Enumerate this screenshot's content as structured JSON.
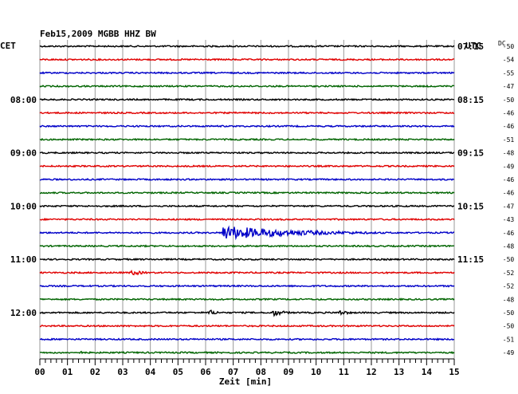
{
  "chart_data": {
    "type": "line",
    "title": "Feb15,2009   MGBB HHZ BW",
    "left_axis_label": "CET",
    "right_axis_label": "UTC",
    "dc_label": "DC",
    "xlabel": "Zeit [min]",
    "xlim": [
      0,
      15
    ],
    "x_ticks": [
      "00",
      "01",
      "02",
      "03",
      "04",
      "05",
      "06",
      "07",
      "08",
      "09",
      "10",
      "11",
      "12",
      "13",
      "14",
      "15"
    ],
    "left_time_labels": [
      {
        "row": 4,
        "label": "08:00"
      },
      {
        "row": 8,
        "label": "09:00"
      },
      {
        "row": 12,
        "label": "10:00"
      },
      {
        "row": 16,
        "label": "11:00"
      },
      {
        "row": 20,
        "label": "12:00"
      }
    ],
    "right_time_labels": [
      {
        "row": 0,
        "label": "07:15"
      },
      {
        "row": 4,
        "label": "08:15"
      },
      {
        "row": 8,
        "label": "09:15"
      },
      {
        "row": 12,
        "label": "10:15"
      },
      {
        "row": 16,
        "label": "11:15"
      }
    ],
    "dc_values": [
      "-50",
      "-54",
      "-55",
      "-47",
      "-50",
      "-46",
      "-46",
      "-51",
      "-48",
      "-49",
      "-46",
      "-46",
      "-47",
      "-43",
      "-46",
      "-48",
      "-50",
      "-52",
      "-52",
      "-48",
      "-50",
      "-50",
      "-51",
      "-49"
    ],
    "trace_colors": [
      "#000000",
      "#e00000",
      "#0000c8",
      "#006400"
    ],
    "row_count": 24,
    "events": [
      {
        "row": 14,
        "start_min": 6.6,
        "amplitude": 9,
        "decay_min": 3.8,
        "color": "#0000c8"
      },
      {
        "row": 17,
        "start_min": 3.3,
        "amplitude": 4,
        "decay_min": 0.6,
        "color": "#e00000"
      },
      {
        "row": 20,
        "start_min": 6.1,
        "amplitude": 4,
        "decay_min": 0.5,
        "color": "#000000"
      },
      {
        "row": 20,
        "start_min": 8.4,
        "amplitude": 5,
        "decay_min": 0.6,
        "color": "#000000"
      },
      {
        "row": 20,
        "start_min": 10.8,
        "amplitude": 4,
        "decay_min": 0.5,
        "color": "#000000"
      },
      {
        "row": 23,
        "start_min": 1.5,
        "amplitude": 2,
        "decay_min": 0.2,
        "color": "#006400"
      }
    ]
  }
}
